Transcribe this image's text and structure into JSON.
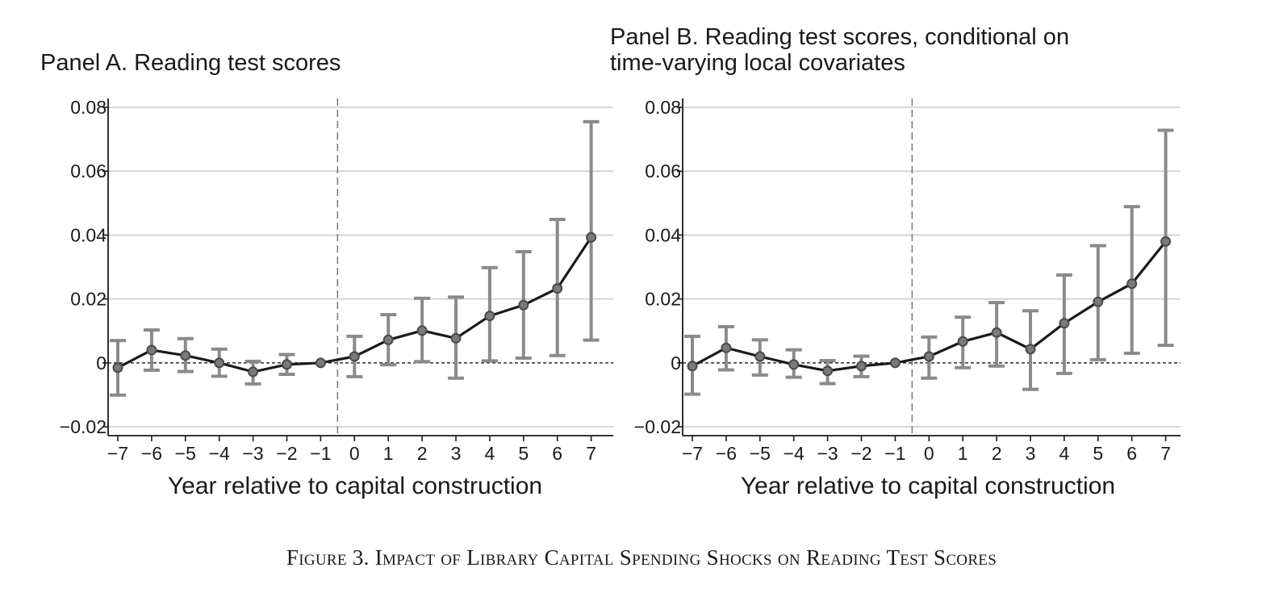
{
  "figure": {
    "caption": "Figure 3. Impact of Library Capital Spending Shocks on Reading Test Scores"
  },
  "colors": {
    "line": "#1a1a1a",
    "ci": "#8a8a8a",
    "grid": "#cccccc",
    "axis": "#1a1a1a",
    "marker_fill": "#7a7a7a"
  },
  "chart_data": [
    {
      "type": "line",
      "title_lines": [
        "Panel A. Reading test scores"
      ],
      "xlabel": "Year relative to capital construction",
      "ylabel": "",
      "x": [
        -7,
        -6,
        -5,
        -4,
        -3,
        -2,
        -1,
        0,
        1,
        2,
        3,
        4,
        5,
        6,
        7
      ],
      "x_tick_labels": [
        "−7",
        "−6",
        "−5",
        "−4",
        "−3",
        "−2",
        "−1",
        "0",
        "1",
        "2",
        "3",
        "4",
        "5",
        "6",
        "7"
      ],
      "y_ticks": [
        -0.02,
        0,
        0.02,
        0.04,
        0.06,
        0.08
      ],
      "y_tick_labels": [
        "−0.02",
        "0",
        "0.02",
        "0.04",
        "0.06",
        "0.08"
      ],
      "ylim": [
        -0.0225,
        0.083
      ],
      "reference_line_x": -0.5,
      "series": [
        {
          "name": "Point estimate",
          "values": [
            -0.0015,
            0.004,
            0.0023,
            0.0,
            -0.0028,
            -0.0005,
            0.0,
            0.002,
            0.0072,
            0.0101,
            0.0077,
            0.0147,
            0.0181,
            0.0233,
            0.0393
          ],
          "ci_low": [
            -0.0101,
            -0.0023,
            -0.0027,
            -0.0042,
            -0.0066,
            -0.0036,
            0.0,
            -0.0043,
            -0.0006,
            0.0004,
            -0.0048,
            0.0006,
            0.0015,
            0.0023,
            0.0071
          ],
          "ci_high": [
            0.007,
            0.0103,
            0.0076,
            0.0043,
            0.0005,
            0.0026,
            0.0,
            0.0083,
            0.0151,
            0.0202,
            0.0206,
            0.0298,
            0.0348,
            0.0449,
            0.0755
          ]
        }
      ],
      "grid": true
    },
    {
      "type": "line",
      "title_lines": [
        "Panel B. Reading test scores, conditional on",
        "time-varying local covariates"
      ],
      "xlabel": "Year relative to capital construction",
      "ylabel": "",
      "x": [
        -7,
        -6,
        -5,
        -4,
        -3,
        -2,
        -1,
        0,
        1,
        2,
        3,
        4,
        5,
        6,
        7
      ],
      "x_tick_labels": [
        "−7",
        "−6",
        "−5",
        "−4",
        "−3",
        "−2",
        "−1",
        "0",
        "1",
        "2",
        "3",
        "4",
        "5",
        "6",
        "7"
      ],
      "y_ticks": [
        -0.02,
        0,
        0.02,
        0.04,
        0.06,
        0.08
      ],
      "y_tick_labels": [
        "−0.02",
        "0",
        "0.02",
        "0.04",
        "0.06",
        "0.08"
      ],
      "ylim": [
        -0.0225,
        0.083
      ],
      "reference_line_x": -0.5,
      "series": [
        {
          "name": "Point estimate",
          "values": [
            -0.001,
            0.0047,
            0.002,
            -0.0005,
            -0.0025,
            -0.001,
            0.0,
            0.002,
            0.0067,
            0.0095,
            0.0043,
            0.0124,
            0.0191,
            0.0248,
            0.038
          ],
          "ci_low": [
            -0.0098,
            -0.0022,
            -0.0038,
            -0.0045,
            -0.0065,
            -0.0043,
            0.0,
            -0.0048,
            -0.0015,
            -0.001,
            -0.0083,
            -0.0033,
            0.001,
            0.003,
            0.0055
          ],
          "ci_high": [
            0.0083,
            0.0113,
            0.0072,
            0.0041,
            0.0007,
            0.0021,
            0.0,
            0.0081,
            0.0143,
            0.0189,
            0.0163,
            0.0275,
            0.0367,
            0.0489,
            0.0728
          ]
        }
      ],
      "grid": true
    }
  ]
}
